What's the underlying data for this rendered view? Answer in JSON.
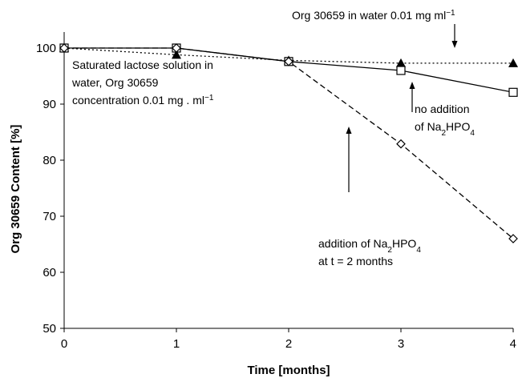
{
  "chart_data": {
    "type": "line",
    "xlabel": "Time [months]",
    "ylabel": "Org 30659 Content [%]",
    "xlim": [
      0,
      4
    ],
    "ylim": [
      50,
      100
    ],
    "x_ticks": [
      "0",
      "1",
      "2",
      "3",
      "4"
    ],
    "y_ticks": [
      "50",
      "60",
      "70",
      "80",
      "90",
      "100"
    ],
    "grid": false,
    "series": [
      {
        "line_style": "dotted",
        "marker": "filled-triangle",
        "x": [
          0,
          1,
          2,
          3,
          4
        ],
        "y": [
          100,
          98.8,
          97.8,
          97.3,
          97.3
        ]
      },
      {
        "line_style": "solid",
        "marker": "open-square",
        "x": [
          0,
          1,
          2,
          3,
          4
        ],
        "y": [
          100,
          100,
          97.6,
          96,
          92.1
        ]
      },
      {
        "line_style": "dashed",
        "marker": "open-diamond",
        "x": [
          0,
          1,
          2,
          3,
          4
        ],
        "y": [
          100,
          100,
          97.6,
          82.9,
          66
        ]
      }
    ],
    "annotations": [
      {
        "id": "water",
        "lines": [
          [
            "Org 30659 in water 0.01 mg ml",
            "sup",
            "−1"
          ]
        ]
      },
      {
        "id": "lactose",
        "lines": [
          [
            "Saturated lactose solution in"
          ],
          [
            "water, Org 30659"
          ],
          [
            "concentration 0.01 mg . ml",
            "sup",
            "−1"
          ]
        ]
      },
      {
        "id": "no_add",
        "lines": [
          [
            "no addition"
          ],
          [
            "of Na",
            "sub",
            "2",
            "",
            "HPO",
            "sub",
            "4"
          ]
        ]
      },
      {
        "id": "add",
        "lines": [
          [
            "addition of Na",
            "sub",
            "2",
            "",
            "HPO",
            "sub",
            "4"
          ],
          [
            "at t = 2 months"
          ]
        ]
      }
    ]
  }
}
